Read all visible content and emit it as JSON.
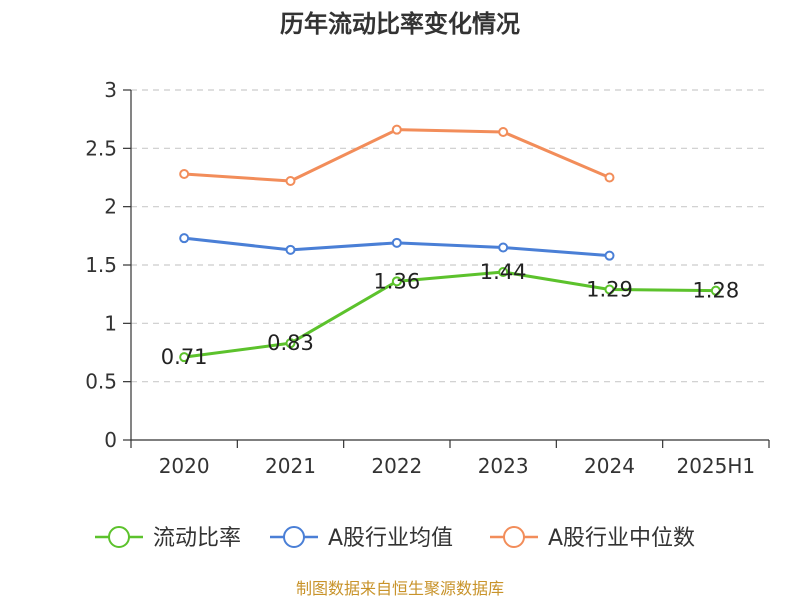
{
  "chart_data": {
    "type": "line",
    "title": "历年流动比率变化情况",
    "categories": [
      "2020",
      "2021",
      "2022",
      "2023",
      "2024",
      "2025H1"
    ],
    "y_ticks": [
      "0",
      "0.5",
      "1",
      "1.5",
      "2",
      "2.5",
      "3"
    ],
    "ylim": [
      0,
      3
    ],
    "xlabel": "",
    "ylabel": "",
    "grid": true,
    "legend_position": "bottom",
    "series": [
      {
        "name": "流动比率",
        "color": "#5cc22c",
        "values": [
          0.71,
          0.83,
          1.36,
          1.44,
          1.29,
          1.28
        ],
        "labels": [
          "0.71",
          "0.83",
          "1.36",
          "1.44",
          "1.29",
          "1.28"
        ]
      },
      {
        "name": "A股行业均值",
        "color": "#4a7fd6",
        "values": [
          1.73,
          1.63,
          1.69,
          1.65,
          1.58,
          null
        ]
      },
      {
        "name": "A股行业中位数",
        "color": "#f28d5a",
        "values": [
          2.28,
          2.22,
          2.66,
          2.64,
          2.25,
          null
        ]
      }
    ]
  },
  "source": {
    "text": "制图数据来自恒生聚源数据库",
    "color": "#c8932a"
  }
}
